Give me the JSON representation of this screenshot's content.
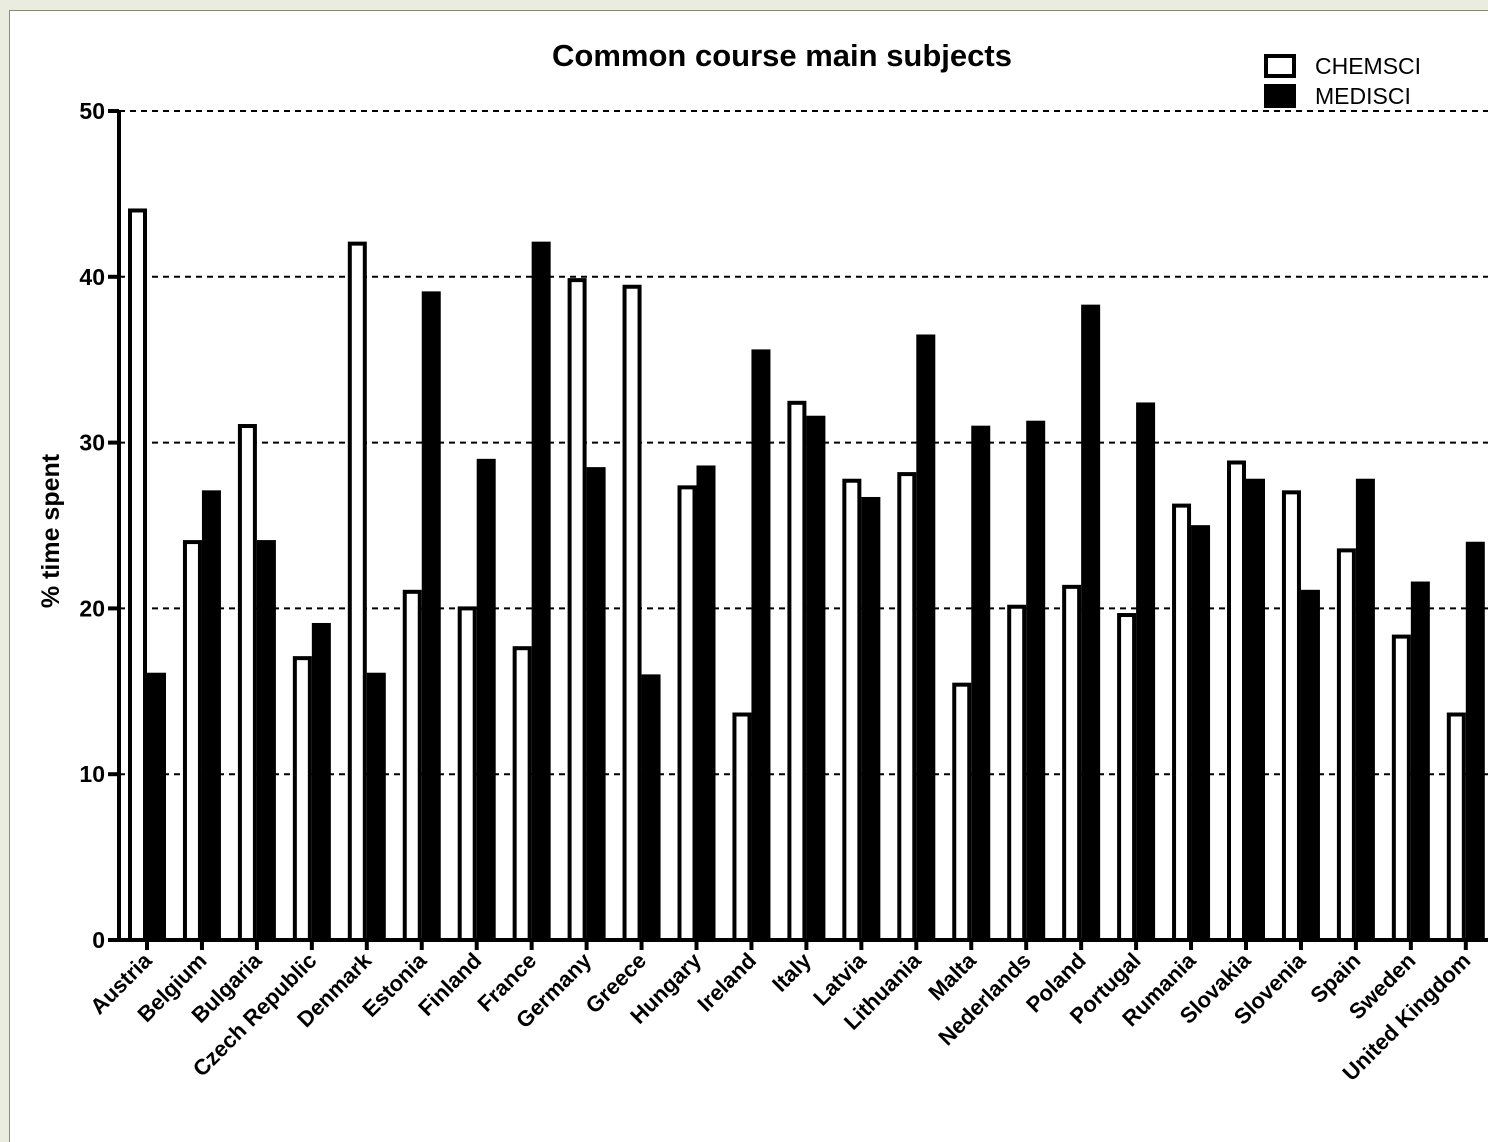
{
  "chart_data": {
    "type": "bar",
    "title": "Common course main subjects",
    "xlabel": "",
    "ylabel": "% time spent",
    "ylim": [
      0,
      50
    ],
    "yticks": [
      0,
      10,
      20,
      30,
      40,
      50
    ],
    "grid": "dashed horizontal at major ticks",
    "legend_position": "top-right",
    "categories": [
      "Austria",
      "Belgium",
      "Bulgaria",
      "Czech Republic",
      "Denmark",
      "Estonia",
      "Finland",
      "France",
      "Germany",
      "Greece",
      "Hungary",
      "Ireland",
      "Italy",
      "Latvia",
      "Lithuania",
      "Malta",
      "Nederlands",
      "Poland",
      "Portugal",
      "Rumania",
      "Slovakia",
      "Slovenia",
      "Spain",
      "Sweden",
      "United Kingdom"
    ],
    "series": [
      {
        "name": "CHEMSCI",
        "fill": "#ffffff",
        "values": [
          44,
          24,
          31,
          17,
          42,
          21,
          20,
          17.6,
          39.8,
          39.4,
          27.3,
          13.6,
          32.4,
          27.7,
          28.1,
          15.4,
          20.1,
          21.3,
          19.6,
          26.2,
          28.8,
          27,
          23.5,
          18.3,
          13.6
        ]
      },
      {
        "name": "MEDISCI",
        "fill": "#000000",
        "values": [
          16,
          27,
          24,
          19,
          16,
          39,
          28.9,
          42,
          28.4,
          15.9,
          28.5,
          35.5,
          31.5,
          26.6,
          36.4,
          30.9,
          31.2,
          38.2,
          32.3,
          24.9,
          27.7,
          21,
          27.7,
          21.5,
          23.9
        ]
      }
    ]
  }
}
